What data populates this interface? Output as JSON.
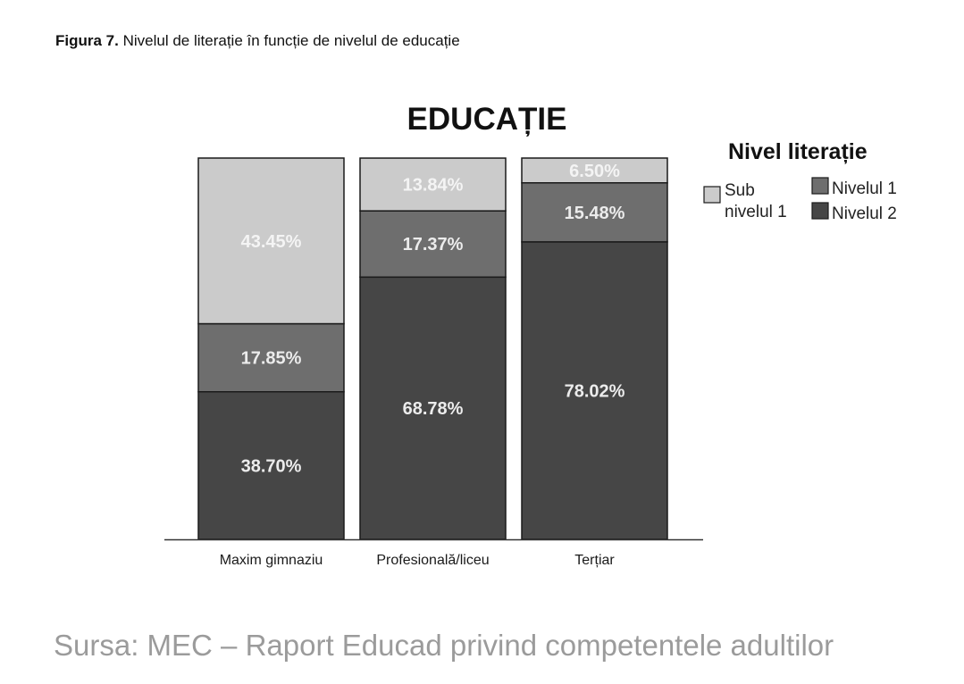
{
  "figure": {
    "label": "Figura 7.",
    "caption": "Nivelul de literație în funcție de nivelul de educație"
  },
  "chart_data": {
    "type": "bar",
    "stacked": true,
    "title": "EDUCAȚIE",
    "categories": [
      "Maxim gimnaziu",
      "Profesională/liceu",
      "Terțiar"
    ],
    "series": [
      {
        "name": "Nivelul 2",
        "values": [
          38.7,
          68.78,
          78.02
        ],
        "labels": [
          "38.70%",
          "68.78%",
          "78.02%"
        ],
        "color": "#464646",
        "label_color": "#ececec"
      },
      {
        "name": "Nivelul 1",
        "values": [
          17.85,
          17.37,
          15.48
        ],
        "labels": [
          "17.85%",
          "17.37%",
          "15.48%"
        ],
        "color": "#6e6e6e",
        "label_color": "#ececec"
      },
      {
        "name": "Sub nivelul 1",
        "values": [
          43.45,
          13.84,
          6.5
        ],
        "labels": [
          "43.45%",
          "13.84%",
          "6.50%"
        ],
        "color": "#cbcbcb",
        "label_color": "#f4f4f4"
      }
    ],
    "ylim": [
      0,
      100
    ],
    "legend": {
      "title": "Nivel literație",
      "position": "right",
      "entries": [
        "Sub nivelul 1",
        "Nivelul 1",
        "Nivelul 2"
      ]
    }
  },
  "source": "Sursa: MEC – Raport Educad privind competentele adultilor"
}
